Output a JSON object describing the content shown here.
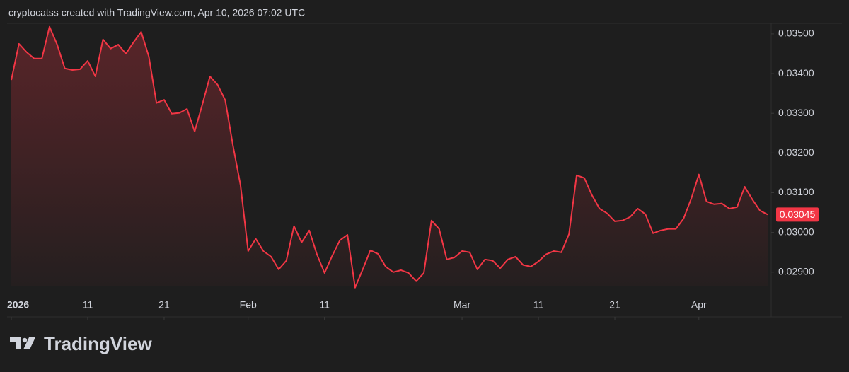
{
  "chart_data": {
    "type": "line",
    "caption": "cryptocatss created with TradingView.com, Apr 10, 2026 07:02 UTC",
    "brand": "TradingView",
    "color": "#f23645",
    "x": [
      "2026-01-01",
      "2026-01-02",
      "2026-01-03",
      "2026-01-04",
      "2026-01-05",
      "2026-01-06",
      "2026-01-07",
      "2026-01-08",
      "2026-01-09",
      "2026-01-10",
      "2026-01-11",
      "2026-01-12",
      "2026-01-13",
      "2026-01-14",
      "2026-01-15",
      "2026-01-16",
      "2026-01-17",
      "2026-01-18",
      "2026-01-19",
      "2026-01-20",
      "2026-01-21",
      "2026-01-22",
      "2026-01-23",
      "2026-01-24",
      "2026-01-25",
      "2026-01-26",
      "2026-01-27",
      "2026-01-28",
      "2026-01-29",
      "2026-01-30",
      "2026-01-31",
      "2026-02-01",
      "2026-02-02",
      "2026-02-03",
      "2026-02-04",
      "2026-02-05",
      "2026-02-06",
      "2026-02-07",
      "2026-02-08",
      "2026-02-09",
      "2026-02-10",
      "2026-02-11",
      "2026-02-12",
      "2026-02-13",
      "2026-02-14",
      "2026-02-15",
      "2026-02-16",
      "2026-02-17",
      "2026-02-18",
      "2026-02-19",
      "2026-02-20",
      "2026-02-21",
      "2026-02-22",
      "2026-02-23",
      "2026-02-24",
      "2026-02-25",
      "2026-02-26",
      "2026-02-27",
      "2026-02-28",
      "2026-03-01",
      "2026-03-02",
      "2026-03-03",
      "2026-03-04",
      "2026-03-05",
      "2026-03-06",
      "2026-03-07",
      "2026-03-08",
      "2026-03-09",
      "2026-03-10",
      "2026-03-11",
      "2026-03-12",
      "2026-03-13",
      "2026-03-14",
      "2026-03-15",
      "2026-03-16",
      "2026-03-17",
      "2026-03-18",
      "2026-03-19",
      "2026-03-20",
      "2026-03-21",
      "2026-03-22",
      "2026-03-23",
      "2026-03-24",
      "2026-03-25",
      "2026-03-26",
      "2026-03-27",
      "2026-03-28",
      "2026-03-29",
      "2026-03-30",
      "2026-03-31",
      "2026-04-01",
      "2026-04-02",
      "2026-04-03",
      "2026-04-04",
      "2026-04-05",
      "2026-04-06",
      "2026-04-07",
      "2026-04-08",
      "2026-04-09",
      "2026-04-10"
    ],
    "values": [
      0.03384,
      0.03475,
      0.03454,
      0.03438,
      0.03438,
      0.03518,
      0.03473,
      0.03413,
      0.03409,
      0.03411,
      0.03432,
      0.03393,
      0.03486,
      0.03463,
      0.03473,
      0.0345,
      0.03479,
      0.03505,
      0.03443,
      0.03326,
      0.03334,
      0.03299,
      0.03301,
      0.03311,
      0.03254,
      0.03322,
      0.03393,
      0.03372,
      0.03333,
      0.0322,
      0.03119,
      0.02953,
      0.02984,
      0.02953,
      0.02939,
      0.02907,
      0.02929,
      0.03016,
      0.02975,
      0.03005,
      0.02945,
      0.02898,
      0.02941,
      0.0298,
      0.02994,
      0.02861,
      0.02907,
      0.02955,
      0.02946,
      0.02914,
      0.029,
      0.02905,
      0.02898,
      0.02877,
      0.02898,
      0.0303,
      0.03009,
      0.02932,
      0.02937,
      0.02953,
      0.0295,
      0.02907,
      0.02932,
      0.02929,
      0.0291,
      0.02932,
      0.02939,
      0.02918,
      0.02914,
      0.02927,
      0.02945,
      0.02953,
      0.0295,
      0.02996,
      0.03144,
      0.03137,
      0.03094,
      0.0306,
      0.03048,
      0.03028,
      0.0303,
      0.03039,
      0.0306,
      0.03046,
      0.02998,
      0.03005,
      0.03009,
      0.03009,
      0.03035,
      0.03085,
      0.03146,
      0.03078,
      0.03071,
      0.03073,
      0.0306,
      0.03064,
      0.03115,
      0.03083,
      0.03055,
      0.03045
    ],
    "xlim": [
      "2026-01-01",
      "2026-04-10"
    ],
    "xticks": [
      {
        "value": "2026-01-01",
        "label": "2026"
      },
      {
        "value": "2026-01-11",
        "label": "11"
      },
      {
        "value": "2026-01-21",
        "label": "21"
      },
      {
        "value": "2026-02-01",
        "label": "Feb"
      },
      {
        "value": "2026-02-11",
        "label": "11"
      },
      {
        "value": "2026-03-01",
        "label": "Mar"
      },
      {
        "value": "2026-03-11",
        "label": "11"
      },
      {
        "value": "2026-03-21",
        "label": "21"
      },
      {
        "value": "2026-04-01",
        "label": "Apr"
      }
    ],
    "ylim": [
      0.02864,
      0.03523
    ],
    "yticks": [
      {
        "value": 0.029,
        "label": "0.02900"
      },
      {
        "value": 0.03,
        "label": "0.03000"
      },
      {
        "value": 0.031,
        "label": "0.03100"
      },
      {
        "value": 0.032,
        "label": "0.03200"
      },
      {
        "value": 0.033,
        "label": "0.03300"
      },
      {
        "value": 0.034,
        "label": "0.03400"
      },
      {
        "value": 0.035,
        "label": "0.03500"
      }
    ]
  }
}
